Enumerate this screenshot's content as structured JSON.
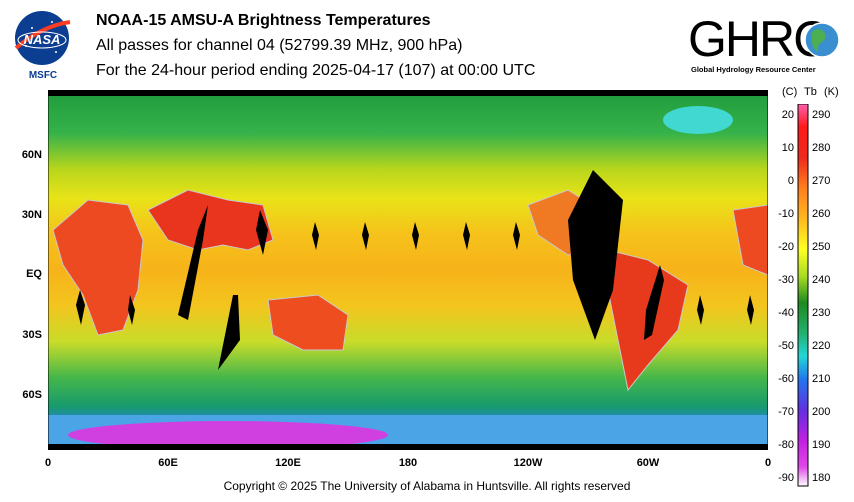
{
  "header": {
    "title": "NOAA-15 AMSU-A Brightness Temperatures",
    "subtitle": "All passes for channel 04 (52799.39 MHz, 900 hPa)",
    "period": "For the 24-hour period ending 2025-04-17 (107) at 00:00 UTC"
  },
  "logos": {
    "nasa_text": "NASA",
    "msfc_text": "MSFC",
    "ghrc_text": "GHRC",
    "ghrc_subtext": "Global Hydrology Resource Center"
  },
  "map": {
    "lat_labels": [
      "60N",
      "30N",
      "EQ",
      "30S",
      "60S"
    ],
    "lon_labels": [
      "0",
      "60E",
      "120E",
      "180",
      "120W",
      "60W",
      "0"
    ]
  },
  "colorbar": {
    "celsius_header": "(C)",
    "tb_header": "Tb",
    "kelvin_header": "(K)",
    "celsius_ticks": [
      "20",
      "10",
      "0",
      "-10",
      "-20",
      "-30",
      "-40",
      "-50",
      "-60",
      "-70",
      "-80",
      "-90"
    ],
    "kelvin_ticks": [
      "290",
      "280",
      "270",
      "260",
      "250",
      "240",
      "230",
      "220",
      "210",
      "200",
      "190",
      "180"
    ],
    "range_k": [
      180,
      295
    ]
  },
  "footer": {
    "copyright": "Copyright © 2025 The University of Alabama in Huntsville.  All rights reserved"
  }
}
